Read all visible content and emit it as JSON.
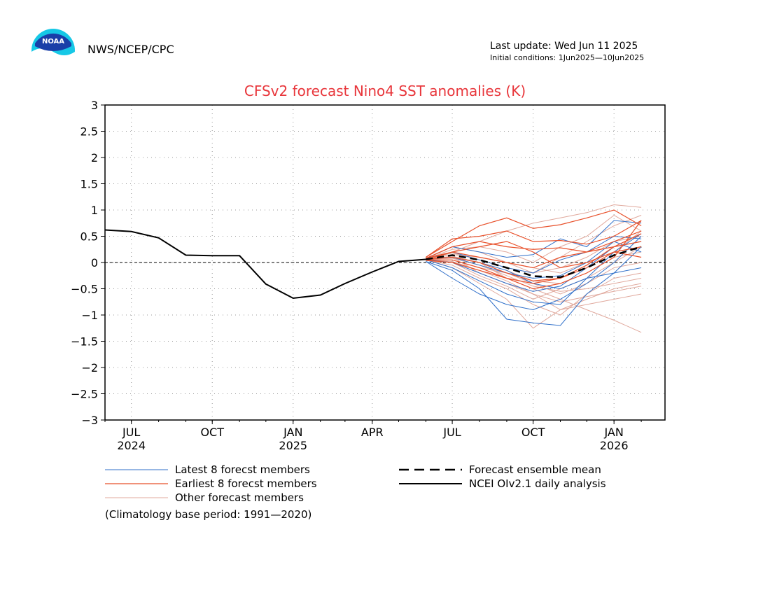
{
  "header": {
    "agency": "NWS/NCEP/CPC",
    "last_update": "Last update: Wed Jun 11 2025",
    "initial_conditions": "Initial conditions: 1Jun2025—10Jun2025",
    "logo_text": "NOAA"
  },
  "colors": {
    "title": "#e8363b",
    "latest": "#2f6fc9",
    "earliest": "#e8502a",
    "other": "#e0a89c",
    "mean": "#000000",
    "observed": "#000000"
  },
  "chart_data": {
    "type": "line",
    "title": "CFSv2 forecast Nino4 SST anomalies (K)",
    "xlabel": "",
    "ylabel": "",
    "x_range": [
      "2024-06-01",
      "2026-02-28"
    ],
    "ylim": [
      -3,
      3
    ],
    "yticks": [
      {
        "value": 3,
        "label": "3"
      },
      {
        "value": 2.5,
        "label": "2.5"
      },
      {
        "value": 2,
        "label": "2"
      },
      {
        "value": 1.5,
        "label": "1.5"
      },
      {
        "value": 1,
        "label": "1"
      },
      {
        "value": 0.5,
        "label": "0.5"
      },
      {
        "value": 0,
        "label": "0"
      },
      {
        "value": -0.5,
        "label": "−0.5"
      },
      {
        "value": -1,
        "label": "−1"
      },
      {
        "value": -1.5,
        "label": "−1.5"
      },
      {
        "value": -2,
        "label": "−2"
      },
      {
        "value": -2.5,
        "label": "−2.5"
      },
      {
        "value": -3,
        "label": "−3"
      }
    ],
    "xticks": [
      {
        "date": "2024-07-01",
        "label": "JUL",
        "sub": "2024"
      },
      {
        "date": "2024-10-01",
        "label": "OCT",
        "sub": ""
      },
      {
        "date": "2025-01-01",
        "label": "JAN",
        "sub": "2025"
      },
      {
        "date": "2025-04-01",
        "label": "APR",
        "sub": ""
      },
      {
        "date": "2025-07-01",
        "label": "JUL",
        "sub": ""
      },
      {
        "date": "2025-10-01",
        "label": "OCT",
        "sub": ""
      },
      {
        "date": "2026-01-01",
        "label": "JAN",
        "sub": "2026"
      }
    ],
    "grid": true,
    "zero_line": true,
    "observed": {
      "name": "NCEI OIv2.1 daily analysis",
      "x": [
        "2024-06-01",
        "2024-07-01",
        "2024-08-01",
        "2024-09-01",
        "2024-10-01",
        "2024-11-01",
        "2024-12-01",
        "2025-01-01",
        "2025-02-01",
        "2025-03-01",
        "2025-04-01",
        "2025-05-01",
        "2025-06-01"
      ],
      "y": [
        0.62,
        0.59,
        0.47,
        0.14,
        0.13,
        0.13,
        -0.41,
        -0.68,
        -0.62,
        -0.4,
        -0.18,
        0.02,
        0.06
      ]
    },
    "forecast_months": [
      "2025-06-01",
      "2025-07-01",
      "2025-08-01",
      "2025-09-01",
      "2025-10-01",
      "2025-11-01",
      "2025-12-01",
      "2026-01-01",
      "2026-02-01"
    ],
    "mean": {
      "name": "Forecast ensemble mean",
      "y": [
        0.06,
        0.14,
        0.05,
        -0.1,
        -0.26,
        -0.28,
        -0.1,
        0.14,
        0.3
      ]
    },
    "latest": {
      "name": "Latest 8 forecst members",
      "members": [
        [
          0.02,
          -0.15,
          -0.5,
          -1.08,
          -1.15,
          -1.2,
          -0.6,
          -0.2,
          0.3
        ],
        [
          0.02,
          -0.3,
          -0.6,
          -0.8,
          -0.9,
          -0.7,
          -0.4,
          0.0,
          0.5
        ],
        [
          0.05,
          -0.1,
          -0.35,
          -0.6,
          -0.75,
          -0.8,
          -0.3,
          0.2,
          0.55
        ],
        [
          0.05,
          0.0,
          -0.2,
          -0.4,
          -0.55,
          -0.45,
          -0.1,
          0.3,
          0.4
        ],
        [
          0.06,
          0.1,
          -0.05,
          -0.2,
          -0.3,
          -0.25,
          0.0,
          0.4,
          0.2
        ],
        [
          0.08,
          0.2,
          0.05,
          -0.1,
          -0.2,
          0.05,
          0.2,
          0.5,
          0.45
        ],
        [
          0.08,
          0.3,
          0.2,
          0.1,
          0.15,
          0.45,
          0.3,
          0.8,
          0.75
        ],
        [
          0.06,
          0.1,
          0.0,
          -0.15,
          -0.4,
          -0.5,
          -0.3,
          -0.2,
          -0.1
        ]
      ]
    },
    "earliest": {
      "name": "Earliest 8 forecst members",
      "members": [
        [
          0.1,
          0.4,
          0.7,
          0.85,
          0.65,
          0.72,
          0.85,
          1.0,
          0.7
        ],
        [
          0.1,
          0.45,
          0.5,
          0.6,
          0.4,
          0.42,
          0.35,
          0.5,
          0.8
        ],
        [
          0.08,
          0.3,
          0.4,
          0.3,
          0.25,
          0.28,
          0.2,
          0.4,
          0.6
        ],
        [
          0.08,
          0.2,
          0.1,
          0.0,
          -0.1,
          0.1,
          0.2,
          0.3,
          0.55
        ],
        [
          0.06,
          0.1,
          0.0,
          -0.2,
          -0.35,
          -0.3,
          -0.05,
          0.3,
          0.4
        ],
        [
          0.05,
          0.05,
          -0.1,
          -0.3,
          -0.4,
          -0.3,
          -0.1,
          0.2,
          0.3
        ],
        [
          0.05,
          0.2,
          0.3,
          0.4,
          0.2,
          -0.1,
          0.0,
          0.2,
          0.1
        ],
        [
          0.04,
          0.0,
          -0.15,
          -0.3,
          -0.5,
          -0.4,
          -0.2,
          0.1,
          0.8
        ]
      ]
    },
    "other": {
      "name": "Other forecast members",
      "members": [
        [
          0.05,
          0.1,
          0.0,
          -0.3,
          -0.5,
          -0.7,
          -0.9,
          -1.1,
          -1.33
        ],
        [
          0.06,
          -0.1,
          -0.4,
          -0.7,
          -1.25,
          -0.9,
          -0.7,
          -0.5,
          -0.4
        ],
        [
          0.06,
          0.2,
          0.4,
          0.6,
          0.75,
          0.85,
          0.95,
          1.1,
          1.05
        ],
        [
          0.05,
          0.1,
          -0.2,
          -0.4,
          -0.6,
          -0.9,
          -0.8,
          -0.7,
          -0.6
        ],
        [
          0.07,
          0.3,
          0.2,
          0.0,
          -0.2,
          0.1,
          0.4,
          0.7,
          0.9
        ],
        [
          0.05,
          -0.05,
          -0.3,
          -0.5,
          -0.8,
          -1.0,
          -0.6,
          -0.3,
          -0.2
        ],
        [
          0.06,
          0.15,
          0.1,
          0.0,
          -0.1,
          -0.2,
          0.0,
          0.2,
          0.6
        ],
        [
          0.06,
          0.05,
          -0.1,
          -0.2,
          -0.4,
          -0.6,
          -0.4,
          -0.1,
          0.0
        ],
        [
          0.07,
          0.25,
          0.3,
          0.2,
          0.0,
          0.3,
          0.5,
          0.9,
          0.6
        ],
        [
          0.05,
          0.0,
          -0.25,
          -0.45,
          -0.7,
          -0.5,
          -0.3,
          0.0,
          0.3
        ],
        [
          0.06,
          0.12,
          0.0,
          -0.15,
          -0.35,
          -0.4,
          -0.2,
          0.1,
          0.2
        ],
        [
          0.06,
          0.08,
          -0.05,
          -0.25,
          -0.45,
          -0.55,
          -0.5,
          -0.4,
          -0.3
        ],
        [
          0.06,
          0.18,
          0.05,
          -0.1,
          -0.2,
          -0.1,
          0.1,
          0.4,
          0.5
        ],
        [
          0.05,
          0.02,
          -0.15,
          -0.35,
          -0.6,
          -0.75,
          -0.65,
          -0.55,
          -0.45
        ]
      ]
    },
    "legend": {
      "placement": "bottom",
      "note": "(Climatology base period: 1991—2020)"
    }
  }
}
